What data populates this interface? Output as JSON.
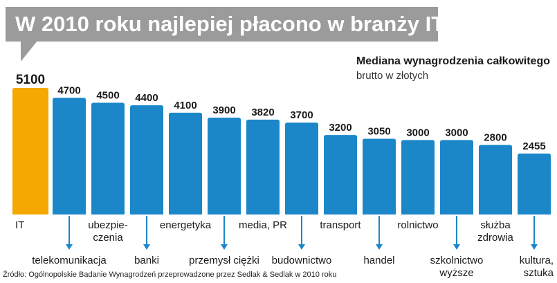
{
  "title": "W 2010 roku najlepiej płacono w branży IT",
  "subtitle": {
    "main": "Mediana wynagrodzenia całkowitego",
    "sub": "brutto w złotych"
  },
  "source": "Źródło: Ogólnopolskie Badanie Wynagrodzeń przeprowadzone przez Sedlak & Sedlak w 2010 roku",
  "colors": {
    "highlight": "#f5a800",
    "bar": "#1b87c9",
    "banner": "#9b9b9b",
    "arrow": "#1b87c9"
  },
  "chart_data": {
    "type": "bar",
    "title": "W 2010 roku najlepiej płacono w branży IT",
    "ylabel": "Mediana wynagrodzenia całkowitego brutto w złotych",
    "ylim": [
      0,
      5100
    ],
    "highlight_index": 0,
    "categories": [
      [
        "IT"
      ],
      [
        "telekomunikacja"
      ],
      [
        "ubezpie-",
        "czenia"
      ],
      [
        "banki"
      ],
      [
        "energetyka"
      ],
      [
        "przemysł ciężki"
      ],
      [
        "media, PR"
      ],
      [
        "budownictwo"
      ],
      [
        "transport"
      ],
      [
        "handel"
      ],
      [
        "rolnictwo"
      ],
      [
        "szkolnictwo",
        "wyższe"
      ],
      [
        "służba",
        "zdrowia"
      ],
      [
        "kultura,",
        "sztuka"
      ]
    ],
    "values": [
      5100,
      4700,
      4500,
      4400,
      4100,
      3900,
      3820,
      3700,
      3200,
      3050,
      3000,
      3000,
      2800,
      2455
    ]
  }
}
